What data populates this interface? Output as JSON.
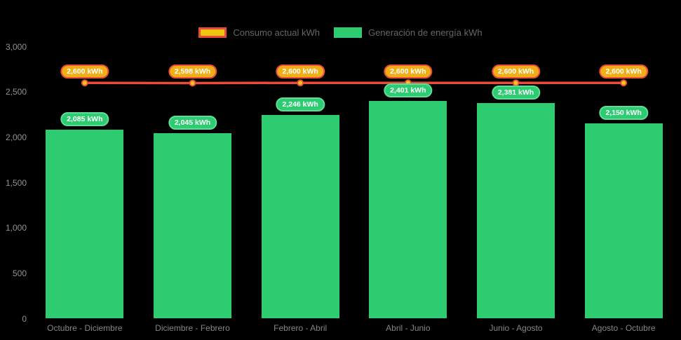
{
  "legend": {
    "items": [
      {
        "label": "Consumo actual kWh",
        "swatch_fill": "#f1c40f",
        "swatch_border": "#e74c3c"
      },
      {
        "label": "Generación de energía kWh",
        "swatch_fill": "#2ecc71",
        "swatch_border": "#2ecc71"
      }
    ]
  },
  "chart_data": {
    "type": "bar",
    "title": "",
    "xlabel": "",
    "ylabel": "",
    "background": "#000000",
    "grid": false,
    "legend_position": "top",
    "ylim": [
      0,
      3000
    ],
    "yticks": [
      {
        "value": 0,
        "label": "0"
      },
      {
        "value": 500,
        "label": "500"
      },
      {
        "value": 1000,
        "label": "1,000"
      },
      {
        "value": 1500,
        "label": "1,500"
      },
      {
        "value": 2000,
        "label": "2,000"
      },
      {
        "value": 2500,
        "label": "2,500"
      },
      {
        "value": 3000,
        "label": "3,000"
      }
    ],
    "categories": [
      "Octubre - Diciembre",
      "Diciembre - Febrero",
      "Febrero - Abril",
      "Abril - Junio",
      "Junio - Agosto",
      "Agosto - Octubre"
    ],
    "series": [
      {
        "name": "Consumo actual kWh",
        "type": "line",
        "color": "#e74c3c",
        "marker_fill": "#fcc71d",
        "label_bg": "#f2ae17",
        "label_border": "#e74c3c",
        "values": [
          2600,
          2598,
          2600,
          2600,
          2600,
          2600
        ],
        "point_labels": [
          "2,600 kWh",
          "2,598 kWh",
          "2,600 kWh",
          "2,600 kWh",
          "2,600 kWh",
          "2,600 kWh"
        ]
      },
      {
        "name": "Generación de energía kWh",
        "type": "bar",
        "color": "#2ecc71",
        "label_bg": "#2ecc71",
        "label_border": "#5edd98",
        "values": [
          2085,
          2045,
          2246,
          2401,
          2381,
          2150
        ],
        "point_labels": [
          "2,085 kWh",
          "2,045 kWh",
          "2,246 kWh",
          "2,401 kWh",
          "2,381 kWh",
          "2,150 kWh"
        ]
      }
    ]
  }
}
